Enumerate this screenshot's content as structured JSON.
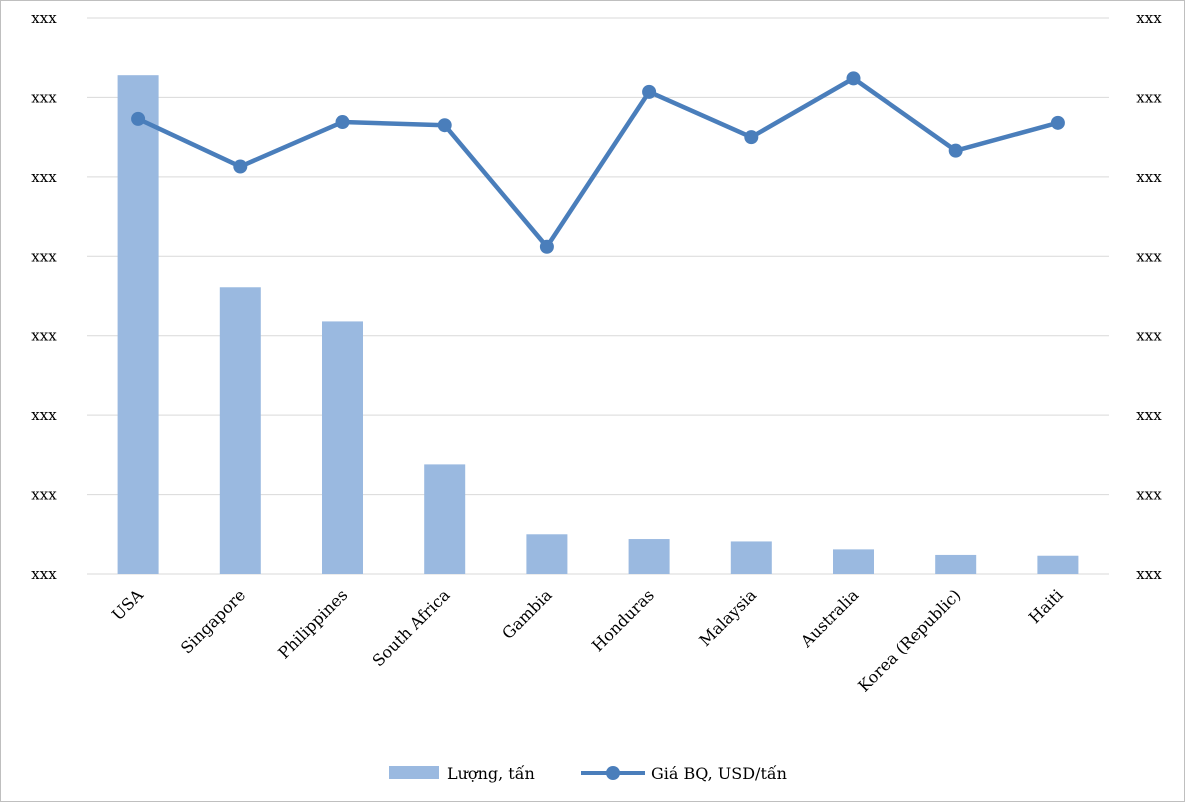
{
  "chart_data": {
    "type": "bar",
    "categories": [
      "USA",
      "Singapore",
      "Philippines",
      "South Africa",
      "Gambia",
      "Honduras",
      "Malaysia",
      "Australia",
      "Korea (Republic)",
      "Haiti"
    ],
    "y_tick_labels": [
      "xxx",
      "xxx",
      "xxx",
      "xxx",
      "xxx",
      "xxx",
      "xxx",
      "xxx"
    ],
    "y2_tick_labels": [
      "xxx",
      "xxx",
      "xxx",
      "xxx",
      "xxx",
      "xxx",
      "xxx",
      "xxx"
    ],
    "ylim": [
      0,
      7
    ],
    "y2lim": [
      0,
      7
    ],
    "series": [
      {
        "name": "Lượng, tấn",
        "type": "bar",
        "axis": "left",
        "color": "#9ab9e0",
        "values": [
          6.28,
          3.61,
          3.18,
          1.38,
          0.5,
          0.44,
          0.41,
          0.31,
          0.24,
          0.23
        ]
      },
      {
        "name": "Giá BQ, USD/tấn",
        "type": "line",
        "axis": "right",
        "color": "#4a7ebb",
        "values": [
          5.73,
          5.13,
          5.69,
          5.65,
          4.12,
          6.07,
          5.5,
          6.24,
          5.33,
          5.68
        ]
      }
    ],
    "grid": true,
    "legend": "bottom"
  }
}
